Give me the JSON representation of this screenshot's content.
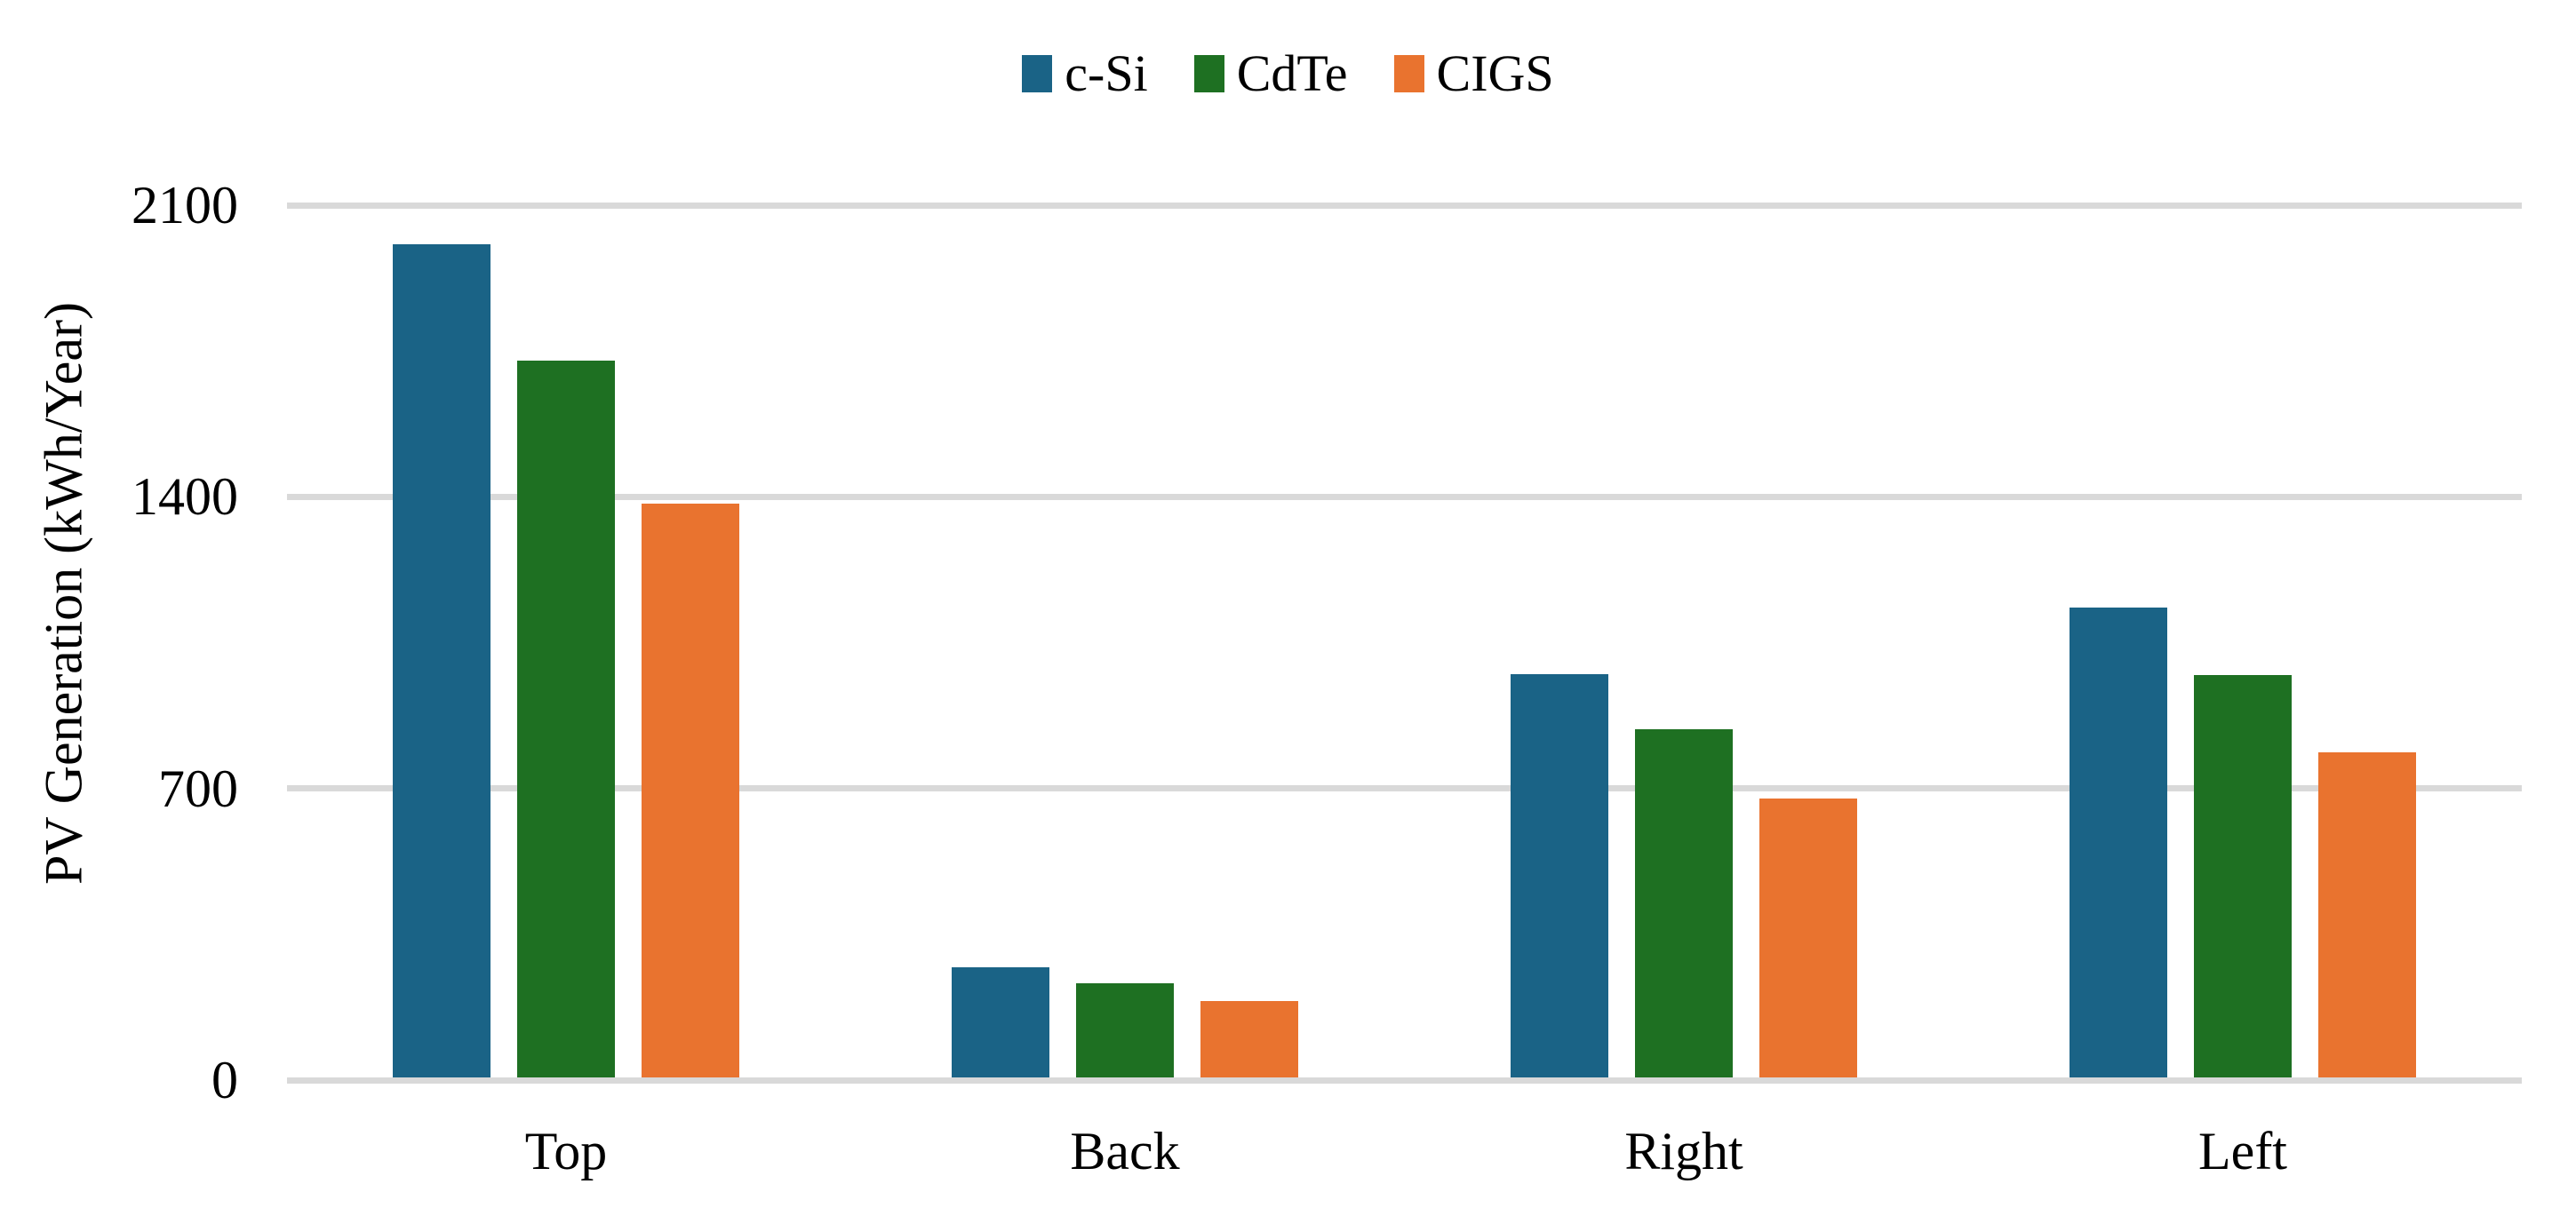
{
  "chart_data": {
    "type": "bar",
    "title": "",
    "ylabel": "PV Generation (kWh/Year)",
    "xlabel": "",
    "categories": [
      "Top",
      "Back",
      "Right",
      "Left"
    ],
    "series": [
      {
        "name": "c-Si",
        "color": "#1A6386",
        "values": [
          2000,
          265,
          968,
          1128
        ]
      },
      {
        "name": "CdTe",
        "color": "#1E7022",
        "values": [
          1720,
          227,
          836,
          966
        ]
      },
      {
        "name": "CIGS",
        "color": "#E9732F",
        "values": [
          1378,
          184,
          670,
          781
        ]
      }
    ],
    "y_ticks": [
      0,
      700,
      1400,
      2100
    ],
    "ylim": [
      0,
      2100
    ],
    "grid": "horizontal",
    "gridline_color": "#D9D9D9",
    "legend_position": "top-center"
  }
}
